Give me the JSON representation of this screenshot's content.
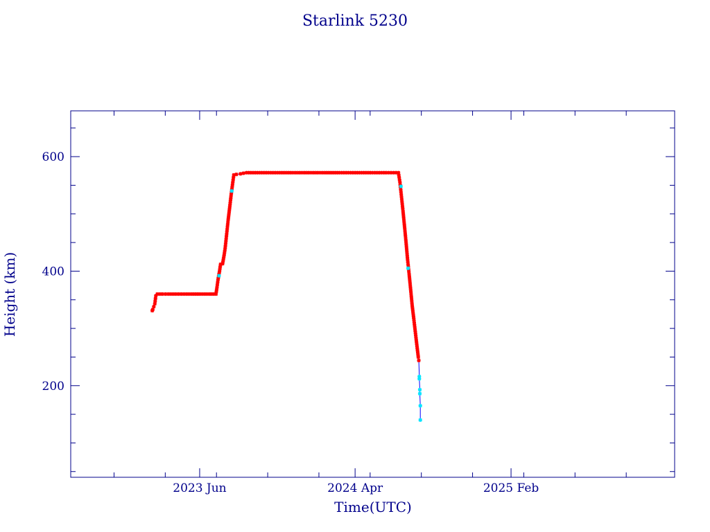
{
  "chart_data": {
    "type": "scatter",
    "title": "Starlink 5230",
    "xlabel": "Time(UTC)",
    "ylabel": "Height (km)",
    "x_ticks": [
      "2023 Jun",
      "2024 Apr",
      "2025 Feb"
    ],
    "y_ticks": [
      200,
      400,
      600
    ],
    "ylim": [
      40,
      680
    ],
    "xlim": [
      "2022-09-21",
      "2025-12-19"
    ],
    "grid": false,
    "colors": {
      "frame": "#00008b",
      "series_main": "#ff0000",
      "series_alt": "#00e5ff",
      "connector": "#0000ff"
    },
    "series": [
      {
        "values": [
          [
            "2023-02-28",
            331
          ],
          [
            "2023-03-01",
            333
          ],
          [
            "2023-03-05",
            343
          ],
          [
            "2023-03-07",
            357
          ],
          [
            "2023-03-10",
            360
          ],
          [
            "2023-03-20",
            360
          ],
          [
            "2023-04-01",
            360
          ],
          [
            "2023-04-15",
            360
          ],
          [
            "2023-05-01",
            360
          ],
          [
            "2023-05-15",
            360
          ],
          [
            "2023-06-01",
            360
          ],
          [
            "2023-06-20",
            360
          ],
          [
            "2023-07-03",
            360
          ],
          [
            "2023-07-05",
            372
          ],
          [
            "2023-07-07",
            385
          ],
          [
            "2023-07-10",
            400
          ],
          [
            "2023-07-12",
            412
          ],
          [
            "2023-07-16",
            413
          ],
          [
            "2023-07-19",
            428
          ],
          [
            "2023-07-21",
            440
          ],
          [
            "2023-07-24",
            465
          ],
          [
            "2023-07-27",
            490
          ],
          [
            "2023-07-30",
            512
          ],
          [
            "2023-08-02",
            535
          ],
          [
            "2023-08-05",
            555
          ],
          [
            "2023-08-07",
            568
          ],
          [
            "2023-08-12",
            569
          ],
          [
            "2023-08-20",
            570
          ],
          [
            "2023-09-01",
            572
          ],
          [
            "2023-10-01",
            572
          ],
          [
            "2023-11-01",
            572
          ],
          [
            "2023-12-01",
            572
          ],
          [
            "2024-01-01",
            572
          ],
          [
            "2024-02-01",
            572
          ],
          [
            "2024-03-01",
            572
          ],
          [
            "2024-04-01",
            572
          ],
          [
            "2024-05-01",
            572
          ],
          [
            "2024-06-01",
            572
          ],
          [
            "2024-06-25",
            572
          ],
          [
            "2024-06-28",
            555
          ],
          [
            "2024-07-01",
            530
          ],
          [
            "2024-07-04",
            505
          ],
          [
            "2024-07-07",
            478
          ],
          [
            "2024-07-10",
            450
          ],
          [
            "2024-07-13",
            420
          ],
          [
            "2024-07-16",
            395
          ],
          [
            "2024-07-19",
            368
          ],
          [
            "2024-07-22",
            340
          ],
          [
            "2024-07-25",
            318
          ],
          [
            "2024-07-28",
            295
          ],
          [
            "2024-07-31",
            272
          ],
          [
            "2024-08-03",
            250
          ],
          [
            "2024-08-04",
            244
          ]
        ]
      },
      {
        "values": [
          [
            "2023-07-09",
            392
          ],
          [
            "2023-08-03",
            540
          ],
          [
            "2024-06-30",
            548
          ],
          [
            "2024-07-14",
            405
          ],
          [
            "2024-08-05",
            216
          ],
          [
            "2024-08-05",
            212
          ],
          [
            "2024-08-06",
            193
          ],
          [
            "2024-08-06",
            186
          ],
          [
            "2024-08-07",
            165
          ],
          [
            "2024-08-07",
            140
          ]
        ]
      }
    ]
  }
}
